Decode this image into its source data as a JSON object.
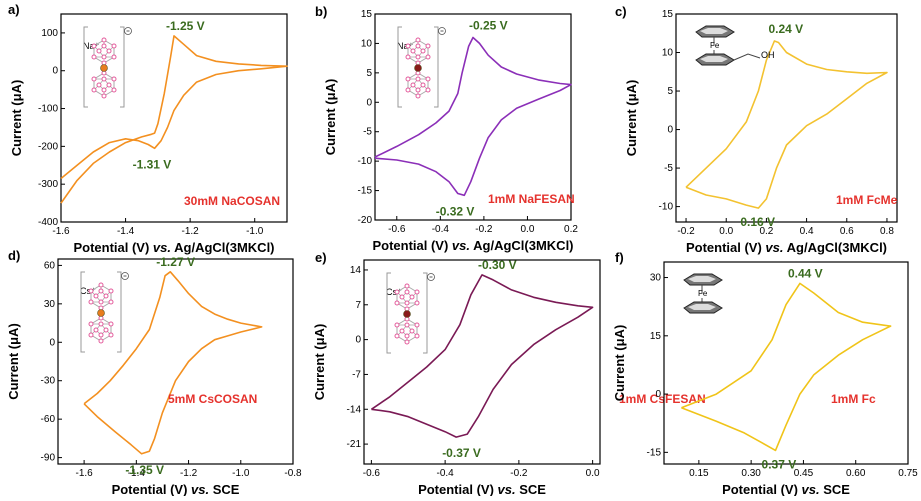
{
  "colors": {
    "orange": "#f39020",
    "purple": "#8b2fb8",
    "gold": "#f3c230",
    "plum": "#7a1a55",
    "yellow": "#f0c419",
    "peak_label": "#3a6b1f",
    "sample_label": "#e5322d"
  },
  "chart_data": [
    {
      "panel": "a)",
      "type": "line",
      "xlabel_pre": "Potential (V) ",
      "xlabel_em": "vs.",
      "xlabel_post": " Ag/AgCl(3MKCl)",
      "ylabel": "Current (μA)",
      "xlim": [
        -1.6,
        -0.9
      ],
      "ylim": [
        -400,
        150
      ],
      "xticks": [
        -1.6,
        -1.4,
        -1.2,
        -1.0
      ],
      "yticks": [
        -400,
        -300,
        -200,
        -100,
        0,
        100
      ],
      "xtick_labels": [
        "-1.6",
        "-1.4",
        "-1.2",
        "-1.0"
      ],
      "ytick_labels": [
        "-400",
        "-300",
        "-200",
        "-100",
        "0",
        "100"
      ],
      "color": "orange",
      "x": [
        -1.6,
        -1.55,
        -1.5,
        -1.45,
        -1.4,
        -1.35,
        -1.32,
        -1.31,
        -1.3,
        -1.28,
        -1.26,
        -1.25,
        -1.22,
        -1.18,
        -1.12,
        -1.05,
        -0.98,
        -0.9,
        -0.98,
        -1.05,
        -1.12,
        -1.18,
        -1.22,
        -1.25,
        -1.27,
        -1.29,
        -1.31,
        -1.33,
        -1.36,
        -1.4,
        -1.45,
        -1.5,
        -1.55,
        -1.6
      ],
      "y": [
        -350,
        -290,
        -245,
        -215,
        -190,
        -175,
        -168,
        -165,
        -140,
        -60,
        40,
        92,
        70,
        40,
        25,
        18,
        14,
        12,
        5,
        0,
        -10,
        -30,
        -65,
        -105,
        -150,
        -185,
        -205,
        -195,
        -185,
        -180,
        -190,
        -215,
        -250,
        -285
      ],
      "peak_labels": [
        {
          "text": "-1.25 V",
          "x": -1.25,
          "y": 92
        },
        {
          "text": "-1.31 V",
          "x": -1.31,
          "y": -205
        }
      ],
      "sample_label": "30mM NaCOSAN",
      "cation": "Na⁺"
    },
    {
      "panel": "b)",
      "type": "line",
      "xlabel_pre": "Potential (V) ",
      "xlabel_em": "vs.",
      "xlabel_post": " Ag/AgCl(3MKCl)",
      "ylabel": "Current (μA)",
      "xlim": [
        -0.7,
        0.2
      ],
      "ylim": [
        -20,
        15
      ],
      "xticks": [
        -0.6,
        -0.4,
        -0.2,
        0.0,
        0.2
      ],
      "yticks": [
        -20,
        -15,
        -10,
        -5,
        0,
        5,
        10,
        15
      ],
      "xtick_labels": [
        "-0.6",
        "-0.4",
        "-0.2",
        "0.0",
        "0.2"
      ],
      "ytick_labels": [
        "-20",
        "-15",
        "-10",
        "-5",
        "0",
        "5",
        "10",
        "15"
      ],
      "color": "purple",
      "x": [
        -0.7,
        -0.6,
        -0.5,
        -0.42,
        -0.36,
        -0.32,
        -0.3,
        -0.27,
        -0.25,
        -0.22,
        -0.18,
        -0.12,
        -0.05,
        0.05,
        0.15,
        0.2,
        0.15,
        0.05,
        -0.05,
        -0.12,
        -0.18,
        -0.22,
        -0.26,
        -0.29,
        -0.32,
        -0.36,
        -0.42,
        -0.5,
        -0.6,
        -0.7
      ],
      "y": [
        -9.3,
        -7.5,
        -5.5,
        -3.5,
        -1.5,
        1.5,
        5.0,
        9.5,
        11.0,
        10.0,
        8.0,
        6.0,
        4.8,
        3.8,
        3.2,
        3.0,
        2.0,
        0.5,
        -1.0,
        -3.0,
        -6.0,
        -9.5,
        -13.5,
        -15.8,
        -15.5,
        -13.5,
        -11.8,
        -10.5,
        -9.8,
        -9.5
      ],
      "peak_labels": [
        {
          "text": "-0.25 V",
          "x": -0.25,
          "y": 11.0
        },
        {
          "text": "-0.32 V",
          "x": -0.32,
          "y": -15.8
        }
      ],
      "sample_label": "1mM NaFESAN",
      "cation": "Na⁺"
    },
    {
      "panel": "c)",
      "type": "line",
      "xlabel_pre": "Potential (V) ",
      "xlabel_em": "vs.",
      "xlabel_post": " Ag/AgCl(3MKCl)",
      "ylabel": "Current (μA)",
      "xlim": [
        -0.25,
        0.85
      ],
      "ylim": [
        -12,
        15
      ],
      "xticks": [
        -0.2,
        0.0,
        0.2,
        0.4,
        0.6,
        0.8
      ],
      "yticks": [
        -10,
        -5,
        0,
        5,
        10,
        15
      ],
      "xtick_labels": [
        "-0.2",
        "0.0",
        "0.2",
        "0.4",
        "0.6",
        "0.8"
      ],
      "ytick_labels": [
        "-10",
        "-5",
        "0",
        "5",
        "10",
        "15"
      ],
      "color": "gold",
      "x": [
        -0.2,
        -0.1,
        0.0,
        0.1,
        0.16,
        0.2,
        0.24,
        0.26,
        0.3,
        0.4,
        0.5,
        0.6,
        0.7,
        0.8,
        0.7,
        0.6,
        0.5,
        0.4,
        0.3,
        0.25,
        0.2,
        0.16,
        0.1,
        0.0,
        -0.1,
        -0.2
      ],
      "y": [
        -7.5,
        -5.0,
        -2.5,
        1.0,
        5.0,
        9.0,
        11.5,
        11.3,
        10.0,
        8.5,
        7.8,
        7.5,
        7.3,
        7.4,
        6.0,
        4.0,
        2.0,
        0.5,
        -2.0,
        -5.0,
        -9.0,
        -10.2,
        -9.8,
        -9.0,
        -8.5,
        -7.5
      ],
      "peak_labels": [
        {
          "text": "0.24 V",
          "x": 0.24,
          "y": 11.5
        },
        {
          "text": "0.16 V",
          "x": 0.16,
          "y": -10.2
        }
      ],
      "sample_label": "1mM FcMe",
      "substituent": "OH"
    },
    {
      "panel": "d)",
      "type": "line",
      "xlabel_pre": "Potential (V) ",
      "xlabel_em": "vs.",
      "xlabel_post": " SCE",
      "ylabel": "Current (μA)",
      "xlim": [
        -1.7,
        -0.8
      ],
      "ylim": [
        -95,
        65
      ],
      "xticks": [
        -1.6,
        -1.4,
        -1.2,
        -1.0,
        -0.8
      ],
      "yticks": [
        -90,
        -60,
        -30,
        0,
        30,
        60
      ],
      "xtick_labels": [
        "-1.6",
        "-1.4",
        "-1.2",
        "-1.0",
        "-0.8"
      ],
      "ytick_labels": [
        "-90",
        "-60",
        "-30",
        "0",
        "30",
        "60"
      ],
      "color": "orange",
      "x": [
        -1.6,
        -1.55,
        -1.5,
        -1.45,
        -1.4,
        -1.35,
        -1.31,
        -1.29,
        -1.27,
        -1.24,
        -1.2,
        -1.15,
        -1.1,
        -1.05,
        -1.0,
        -0.92,
        -1.0,
        -1.05,
        -1.1,
        -1.15,
        -1.2,
        -1.25,
        -1.3,
        -1.33,
        -1.35,
        -1.38,
        -1.42,
        -1.48,
        -1.55,
        -1.6
      ],
      "y": [
        -48,
        -40,
        -30,
        -18,
        -5,
        10,
        35,
        52,
        55,
        48,
        38,
        28,
        22,
        18,
        15,
        12,
        8,
        5,
        2,
        -5,
        -15,
        -30,
        -55,
        -75,
        -85,
        -87,
        -80,
        -70,
        -58,
        -48
      ],
      "peak_labels": [
        {
          "text": "-1.27 V",
          "x": -1.27,
          "y": 55
        },
        {
          "text": "-1.35 V",
          "x": -1.35,
          "y": -87
        }
      ],
      "sample_label": "5mM CsCOSAN",
      "cation": "Cs⁺"
    },
    {
      "panel": "e)",
      "type": "line",
      "xlabel_pre": "Potential (V) ",
      "xlabel_em": "vs.",
      "xlabel_post": " SCE",
      "ylabel": "Current (μA)",
      "xlim": [
        -0.62,
        0.02
      ],
      "ylim": [
        -25,
        16
      ],
      "xticks": [
        -0.6,
        -0.4,
        -0.2,
        0.0
      ],
      "yticks": [
        -21,
        -14,
        -7,
        0,
        7,
        14
      ],
      "xtick_labels": [
        "-0.6",
        "-0.4",
        "-0.2",
        "0.0"
      ],
      "ytick_labels": [
        "-21",
        "-14",
        "-7",
        "0",
        "7",
        "14"
      ],
      "color": "plum",
      "x": [
        -0.6,
        -0.55,
        -0.5,
        -0.45,
        -0.4,
        -0.36,
        -0.33,
        -0.3,
        -0.27,
        -0.22,
        -0.16,
        -0.1,
        -0.04,
        0.0,
        -0.04,
        -0.1,
        -0.16,
        -0.22,
        -0.27,
        -0.31,
        -0.34,
        -0.37,
        -0.4,
        -0.45,
        -0.5,
        -0.55,
        -0.6
      ],
      "y": [
        -14.0,
        -11.5,
        -8.5,
        -5.5,
        -2.0,
        3.0,
        9.0,
        13.0,
        12.0,
        10.0,
        8.5,
        7.5,
        6.8,
        6.5,
        4.5,
        2.0,
        -1.0,
        -5.0,
        -10.0,
        -15.5,
        -19.0,
        -19.6,
        -18.5,
        -17.0,
        -15.5,
        -14.5,
        -14.0
      ],
      "peak_labels": [
        {
          "text": "-0.30 V",
          "x": -0.3,
          "y": 13.0
        },
        {
          "text": "-0.37 V",
          "x": -0.37,
          "y": -19.6
        }
      ],
      "sample_label": "1mM CsFESAN",
      "cation": "Cs⁺"
    },
    {
      "panel": "f)",
      "type": "line",
      "xlabel_pre": "Potential (V) ",
      "xlabel_em": "vs.",
      "xlabel_post": " SCE",
      "ylabel": "Current (μA)",
      "xlim": [
        0.05,
        0.75
      ],
      "ylim": [
        -18,
        34
      ],
      "xticks": [
        0.15,
        0.3,
        0.45,
        0.6,
        0.75
      ],
      "yticks": [
        -15,
        0,
        15,
        30
      ],
      "xtick_labels": [
        "0.15",
        "0.30",
        "0.45",
        "0.60",
        "0.75"
      ],
      "ytick_labels": [
        "-15",
        "0",
        "15",
        "30"
      ],
      "color": "yellow",
      "x": [
        0.1,
        0.2,
        0.3,
        0.36,
        0.4,
        0.44,
        0.48,
        0.55,
        0.62,
        0.7,
        0.62,
        0.55,
        0.48,
        0.44,
        0.4,
        0.37,
        0.33,
        0.28,
        0.2,
        0.1
      ],
      "y": [
        -3.5,
        0.0,
        6.0,
        14.0,
        23.0,
        28.5,
        26.0,
        21.0,
        18.5,
        17.5,
        14.0,
        10.0,
        5.0,
        0.0,
        -8.0,
        -14.5,
        -12.5,
        -10.0,
        -7.0,
        -3.5
      ],
      "peak_labels": [
        {
          "text": "0.44 V",
          "x": 0.44,
          "y": 28.5
        },
        {
          "text": "0.37 V",
          "x": 0.37,
          "y": -14.5
        }
      ],
      "sample_label": "1mM Fc"
    }
  ]
}
